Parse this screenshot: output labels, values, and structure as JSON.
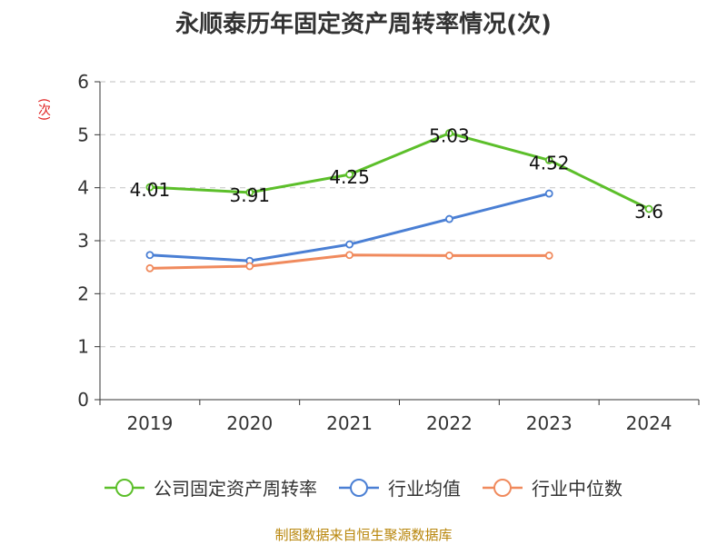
{
  "title": "永顺泰历年固定资产周转率情况(次)",
  "source_note": "制图数据来自恒生聚源数据库",
  "chart_data": {
    "type": "line",
    "title": "永顺泰历年固定资产周转率情况(次)",
    "ylabel": "(次)",
    "xlabel": "",
    "categories": [
      "2019",
      "2020",
      "2021",
      "2022",
      "2023",
      "2024"
    ],
    "ylim": [
      0,
      6
    ],
    "yticks": [
      0,
      1,
      2,
      3,
      4,
      5,
      6
    ],
    "grid": true,
    "legend_position": "bottom",
    "series": [
      {
        "name": "公司固定资产周转率",
        "color": "#5cbf2a",
        "show_labels": true,
        "values": [
          4.01,
          3.91,
          4.25,
          5.03,
          4.52,
          3.6
        ]
      },
      {
        "name": "行业均值",
        "color": "#4a7fd4",
        "show_labels": false,
        "values": [
          2.73,
          2.62,
          2.93,
          3.41,
          3.89,
          null
        ]
      },
      {
        "name": "行业中位数",
        "color": "#f08a5d",
        "show_labels": false,
        "values": [
          2.48,
          2.52,
          2.73,
          2.72,
          2.72,
          null
        ]
      }
    ]
  }
}
